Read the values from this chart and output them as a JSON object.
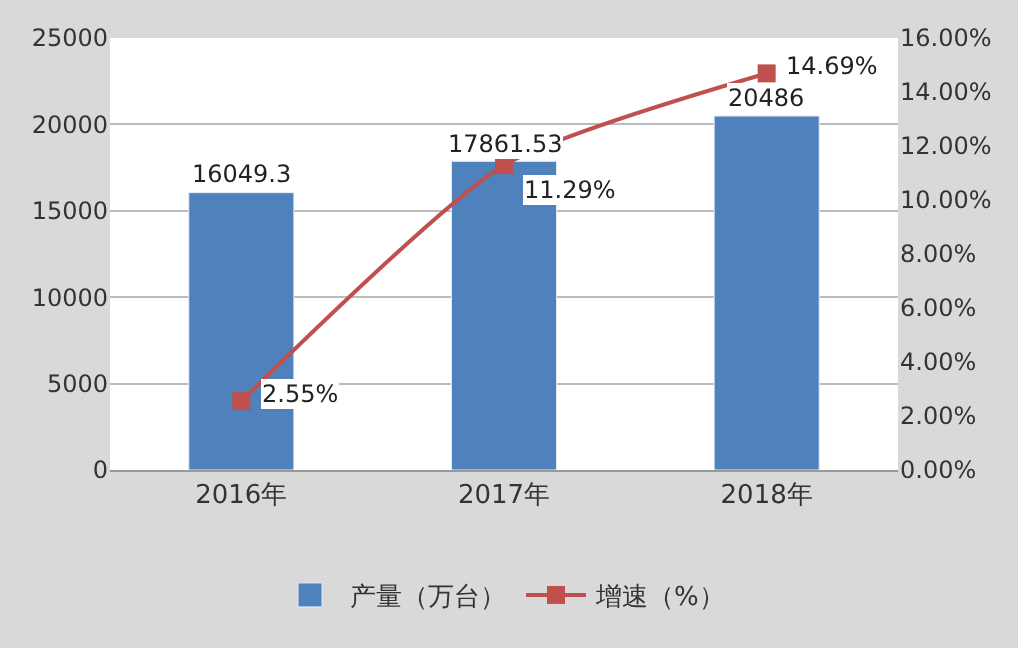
{
  "chart_data": {
    "type": "bar",
    "categories": [
      "2016年",
      "2017年",
      "2018年"
    ],
    "series": [
      {
        "name": "产量（万台）",
        "color": "#4f81bd",
        "values": [
          16049.3,
          17861.53,
          20486
        ],
        "value_labels": [
          "16049.3",
          "17861.53",
          "20486"
        ]
      },
      {
        "name": "增速（%）",
        "type": "line",
        "axis": "y2",
        "color": "#c0504d",
        "marker": "square",
        "values": [
          2.55,
          11.29,
          14.69
        ],
        "value_labels": [
          "2.55%",
          "11.29%",
          "14.69%"
        ]
      }
    ],
    "ylim": [
      0,
      25000
    ],
    "yticks": [
      0,
      5000,
      10000,
      15000,
      20000,
      25000
    ],
    "y2lim": [
      0,
      16
    ],
    "y2ticks": [
      {
        "value": 0,
        "label": "0.00%"
      },
      {
        "value": 2,
        "label": "2.00%"
      },
      {
        "value": 4,
        "label": "4.00%"
      },
      {
        "value": 6,
        "label": "6.00%"
      },
      {
        "value": 8,
        "label": "8.00%"
      },
      {
        "value": 10,
        "label": "10.00%"
      },
      {
        "value": 12,
        "label": "12.00%"
      },
      {
        "value": 14,
        "label": "14.00%"
      },
      {
        "value": 16,
        "label": "16.00%"
      }
    ],
    "grid": "y",
    "legend": "bottom"
  }
}
